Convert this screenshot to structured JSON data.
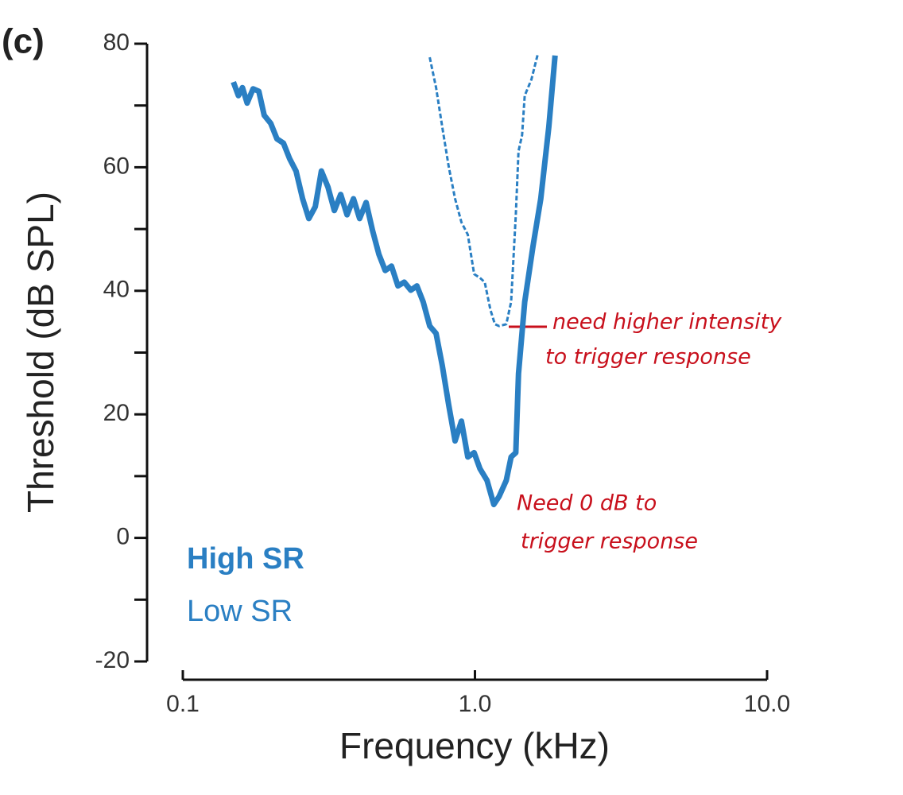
{
  "chart_data": {
    "type": "line",
    "panel_label": "(c)",
    "x_label": "Frequency (kHz)",
    "y_label": "Threshold (dB SPL)",
    "xscale": "log",
    "xlim": [
      0.1,
      10
    ],
    "xticks": [
      0.1,
      {
        "value": 1,
        "label": "1.0"
      },
      {
        "value": 10,
        "label": "10.0"
      }
    ],
    "ylim": [
      -20,
      80
    ],
    "yticks": [
      -20,
      0,
      20,
      40,
      60,
      80
    ],
    "yminor_ticks": [
      -10,
      10,
      30,
      50,
      70
    ],
    "series": [
      {
        "name": "High SR",
        "color": "#2a7fc3",
        "dashed": false,
        "x": [
          0.149,
          0.155,
          0.16,
          0.166,
          0.174,
          0.182,
          0.19,
          0.2,
          0.21,
          0.221,
          0.232,
          0.244,
          0.257,
          0.27,
          0.284,
          0.298,
          0.314,
          0.33,
          0.347,
          0.365,
          0.384,
          0.403,
          0.424,
          0.446,
          0.469,
          0.493,
          0.518,
          0.545,
          0.573,
          0.603,
          0.633,
          0.665,
          0.7,
          0.736,
          0.773,
          0.813,
          0.855,
          0.899,
          0.945,
          0.994,
          1.04,
          1.1,
          1.16,
          1.21,
          1.28,
          1.33,
          1.38,
          1.41,
          1.48,
          1.58,
          1.68,
          1.79,
          1.88
        ],
        "values": [
          73.8,
          71.6,
          72.9,
          70.4,
          72.7,
          72.3,
          68.4,
          67.1,
          64.6,
          63.9,
          61.4,
          59.4,
          54.9,
          51.7,
          53.6,
          59.4,
          56.8,
          53.0,
          55.6,
          52.3,
          54.9,
          51.7,
          54.3,
          49.8,
          45.9,
          43.3,
          44.0,
          40.8,
          41.4,
          40.1,
          40.8,
          38.2,
          34.3,
          33.1,
          27.9,
          21.5,
          15.7,
          18.9,
          13.1,
          13.8,
          11.2,
          9.3,
          5.4,
          6.7,
          9.3,
          13.1,
          13.8,
          26.6,
          38.2,
          47.2,
          54.9,
          66.5,
          78.1
        ]
      },
      {
        "name": "Low SR",
        "color": "#2a7fc3",
        "dashed": true,
        "x": [
          0.7,
          0.736,
          0.773,
          0.813,
          0.855,
          0.899,
          0.945,
          0.994,
          1.04,
          1.08,
          1.13,
          1.17,
          1.21,
          1.28,
          1.33,
          1.38,
          1.41,
          1.45,
          1.48,
          1.56,
          1.64
        ],
        "values": [
          77.8,
          72.9,
          66.5,
          60.1,
          54.9,
          51.1,
          49.1,
          42.7,
          42.1,
          41.4,
          36.9,
          34.6,
          34.3,
          34.6,
          38.2,
          52.3,
          62.6,
          65.2,
          71.6,
          74.2,
          78.3
        ]
      }
    ],
    "annotations": [
      {
        "lines": [
          "need higher intensity",
          "to trigger response"
        ]
      },
      {
        "lines": [
          "Need 0 dB to",
          "trigger response"
        ]
      }
    ]
  }
}
